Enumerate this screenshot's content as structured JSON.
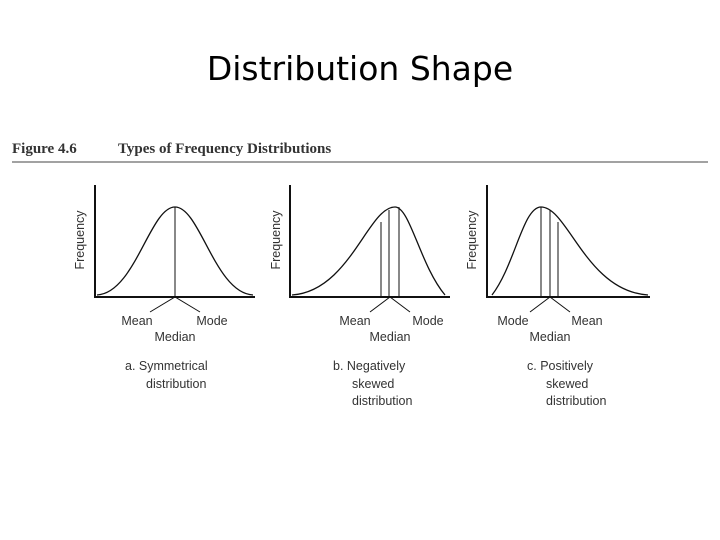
{
  "title": "Distribution Shape",
  "figure": {
    "number": "Figure 4.6",
    "title": "Types of Frequency Distributions"
  },
  "panels": [
    {
      "y_label": "Frequency",
      "left_label": "Mean",
      "right_label": "Mode",
      "bottom_label": "Median",
      "caption": [
        "a. Symmetrical",
        "distribution"
      ]
    },
    {
      "y_label": "Frequency",
      "left_label": "Mean",
      "right_label": "Mode",
      "bottom_label": "Median",
      "caption": [
        "b. Negatively",
        "skewed",
        "distribution"
      ]
    },
    {
      "y_label": "Frequency",
      "left_label": "Mode",
      "right_label": "Mean",
      "bottom_label": "Median",
      "caption": [
        "c. Positively",
        "skewed",
        "distribution"
      ]
    }
  ]
}
